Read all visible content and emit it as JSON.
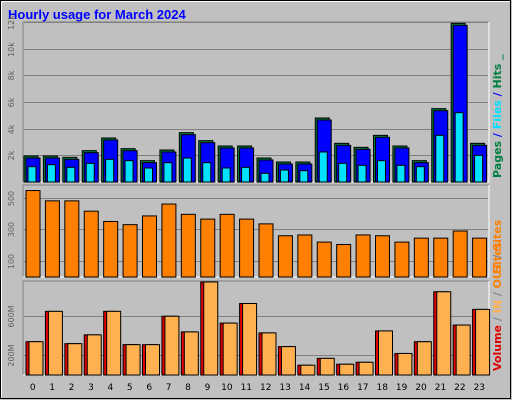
{
  "chart_data": {
    "type": "bar",
    "title": "Hourly usage for March 2024",
    "hours": [
      "0",
      "1",
      "2",
      "3",
      "4",
      "5",
      "6",
      "7",
      "8",
      "9",
      "10",
      "11",
      "12",
      "13",
      "14",
      "15",
      "16",
      "17",
      "18",
      "19",
      "20",
      "21",
      "22",
      "23"
    ],
    "panels": [
      {
        "id": "hits",
        "y_ticks": [
          "2k",
          "4k",
          "6k",
          "8k",
          "10k",
          "12k"
        ],
        "y_tick_values": [
          2000,
          4000,
          6000,
          8000,
          10000,
          12000
        ],
        "ylim": [
          0,
          12000
        ],
        "labels": [
          "Pages",
          " / ",
          "Files",
          " / ",
          "Hits",
          " _"
        ],
        "series": [
          {
            "color": "#008040",
            "values": [
              1950,
              1950,
              1850,
              2350,
              3300,
              2500,
              1600,
              2400,
              3700,
              3100,
              2700,
              2700,
              1800,
              1500,
              1500,
              4800,
              2900,
              2600,
              3500,
              2700,
              1600,
              5500,
              11900,
              2900
            ]
          },
          {
            "color": "#0000ff",
            "values": [
              1800,
              1800,
              1700,
              2200,
              3150,
              2350,
              1450,
              2250,
              3550,
              2950,
              2550,
              2550,
              1650,
              1350,
              1350,
              4650,
              2750,
              2450,
              3350,
              2550,
              1450,
              5350,
              11750,
              2750
            ]
          },
          {
            "color": "#00e0ff",
            "values": [
              1150,
              1300,
              1100,
              1400,
              1700,
              1600,
              1050,
              1450,
              1800,
              1450,
              1050,
              1100,
              650,
              900,
              850,
              2250,
              1400,
              1250,
              1600,
              1250,
              1150,
              3500,
              5200,
              2000
            ]
          }
        ]
      },
      {
        "id": "sites",
        "y_ticks": [
          "100",
          "300",
          "500"
        ],
        "y_tick_values": [
          100,
          300,
          500
        ],
        "ylim": [
          0,
          580
        ],
        "labels": [
          "Sites"
        ],
        "series": [
          {
            "color": "#ff8000",
            "values": [
              545,
              480,
              480,
              415,
              350,
              330,
              385,
              460,
              395,
              365,
              395,
              365,
              335,
              260,
              265,
              220,
              205,
              265,
              260,
              220,
              245,
              245,
              290,
              245
            ]
          }
        ]
      },
      {
        "id": "volume",
        "y_ticks": [
          "200M",
          "600M"
        ],
        "y_tick_values": [
          200,
          600
        ],
        "ylim": [
          0,
          960
        ],
        "labels": [
          "Volume",
          " / ",
          "IN",
          " / ",
          "OUT",
          " / ",
          "Sites"
        ],
        "series": [
          {
            "color": "#e00000",
            "values": [
              340,
              650,
              320,
              410,
              650,
              310,
              310,
              600,
              440,
              950,
              530,
              730,
              430,
              290,
              100,
              170,
              110,
              130,
              450,
              220,
              340,
              850,
              510,
              670
            ]
          },
          {
            "color": "#ffb050",
            "values": [
              340,
              650,
              320,
              410,
              650,
              310,
              310,
              600,
              440,
              950,
              530,
              730,
              430,
              290,
              100,
              170,
              110,
              130,
              450,
              220,
              340,
              850,
              510,
              670
            ]
          }
        ]
      }
    ]
  }
}
